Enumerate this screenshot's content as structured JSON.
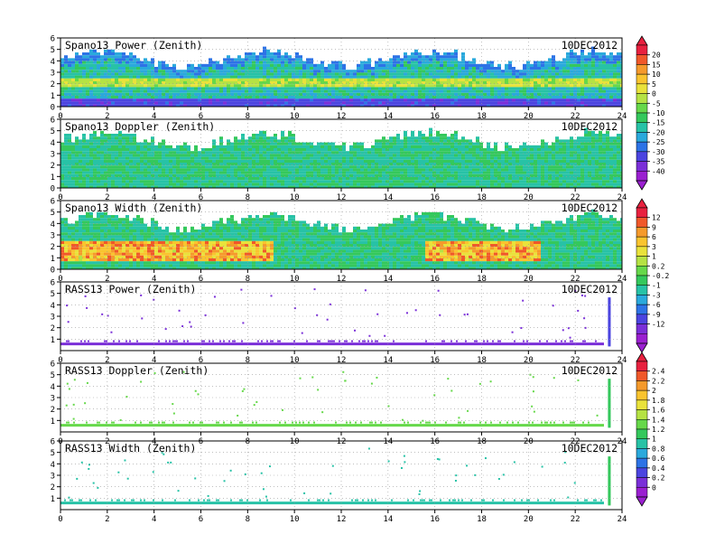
{
  "date_label": "10DEC2012",
  "chart_data": [
    {
      "type": "heatmap",
      "title": "Spano13 Power (Zenith)",
      "date": "10DEC2012",
      "xlim": [
        0,
        24
      ],
      "ylim": [
        0,
        6
      ],
      "x_ticks": [
        "0",
        "2",
        "4",
        "6",
        "8",
        "10",
        "12",
        "14",
        "16",
        "18",
        "20",
        "22",
        "24"
      ],
      "y_ticks": [
        "0",
        "1",
        "2",
        "3",
        "4",
        "5",
        "6"
      ],
      "grid": true,
      "colorbar_group": "power"
    },
    {
      "type": "heatmap",
      "title": "Spano13 Doppler (Zenith)",
      "date": "10DEC2012",
      "xlim": [
        0,
        24
      ],
      "ylim": [
        0,
        6
      ],
      "x_ticks": [
        "0",
        "2",
        "4",
        "6",
        "8",
        "10",
        "12",
        "14",
        "16",
        "18",
        "20",
        "22",
        "24"
      ],
      "y_ticks": [
        "0",
        "1",
        "2",
        "3",
        "4",
        "5",
        "6"
      ],
      "grid": true,
      "colorbar_group": "power"
    },
    {
      "type": "heatmap",
      "title": "Spano13 Width (Zenith)",
      "date": "10DEC2012",
      "xlim": [
        0,
        24
      ],
      "ylim": [
        0,
        6
      ],
      "x_ticks": [
        "0",
        "2",
        "4",
        "6",
        "8",
        "10",
        "12",
        "14",
        "16",
        "18",
        "20",
        "22",
        "24"
      ],
      "y_ticks": [
        "0",
        "1",
        "2",
        "3",
        "4",
        "5",
        "6"
      ],
      "grid": true,
      "colorbar_group": "doppler"
    },
    {
      "type": "heatmap",
      "title": "RASS13 Power (Zenith)",
      "date": "10DEC2012",
      "xlim": [
        0,
        24
      ],
      "ylim": [
        0,
        6
      ],
      "x_ticks": [
        "0",
        "2",
        "4",
        "6",
        "8",
        "10",
        "12",
        "14",
        "16",
        "18",
        "20",
        "22",
        "24"
      ],
      "y_ticks": [
        "1",
        "2",
        "3",
        "4",
        "5",
        "6"
      ],
      "grid": true,
      "colorbar_group": "doppler"
    },
    {
      "type": "heatmap",
      "title": "RASS13 Doppler (Zenith)",
      "date": "10DEC2012",
      "xlim": [
        0,
        24
      ],
      "ylim": [
        0,
        6
      ],
      "x_ticks": [
        "0",
        "2",
        "4",
        "6",
        "8",
        "10",
        "12",
        "14",
        "16",
        "18",
        "20",
        "22",
        "24"
      ],
      "y_ticks": [
        "1",
        "2",
        "3",
        "4",
        "5",
        "6"
      ],
      "grid": true,
      "colorbar_group": "width"
    },
    {
      "type": "heatmap",
      "title": "RASS13 Width (Zenith)",
      "date": "10DEC2012",
      "xlim": [
        0,
        24
      ],
      "ylim": [
        0,
        6
      ],
      "x_ticks": [
        "0",
        "2",
        "4",
        "6",
        "8",
        "10",
        "12",
        "14",
        "16",
        "18",
        "20",
        "22",
        "24"
      ],
      "y_ticks": [
        "1",
        "2",
        "3",
        "4",
        "5",
        "6"
      ],
      "grid": true,
      "colorbar_group": "width"
    }
  ],
  "colorbars": [
    {
      "name": "power",
      "labels": [
        "20",
        "15",
        "10",
        "5",
        "0",
        "-5",
        "-10",
        "-15",
        "-20",
        "-25",
        "-30",
        "-35",
        "-40"
      ],
      "colors": [
        "#e8213f",
        "#f0582a",
        "#f59a2c",
        "#f9c42f",
        "#e9e23b",
        "#b5e244",
        "#66d84a",
        "#34c85c",
        "#27c2a6",
        "#2aa9dc",
        "#2d73e6",
        "#4b44e0",
        "#7a2fd8",
        "#9a1fd0"
      ]
    },
    {
      "name": "doppler",
      "labels": [
        "12",
        "9",
        "6",
        "3",
        "1",
        "0.2",
        "-0.2",
        "-1",
        "-3",
        "-6",
        "-9",
        "-12"
      ],
      "colors": [
        "#e8213f",
        "#f0582a",
        "#f59a2c",
        "#f9c42f",
        "#e9e23b",
        "#b5e244",
        "#66d84a",
        "#34c85c",
        "#27c2a6",
        "#2aa9dc",
        "#2d73e6",
        "#4b44e0",
        "#7a2fd8",
        "#9a1fd0"
      ]
    },
    {
      "name": "width",
      "labels": [
        "2.4",
        "2.2",
        "2",
        "1.8",
        "1.6",
        "1.4",
        "1.2",
        "1",
        "0.8",
        "0.6",
        "0.4",
        "0.2",
        "0"
      ],
      "colors": [
        "#e8213f",
        "#f0582a",
        "#f59a2c",
        "#f9c42f",
        "#e9e23b",
        "#b5e244",
        "#66d84a",
        "#34c85c",
        "#27c2a6",
        "#2aa9dc",
        "#2d73e6",
        "#4b44e0",
        "#7a2fd8",
        "#9a1fd0"
      ]
    }
  ]
}
